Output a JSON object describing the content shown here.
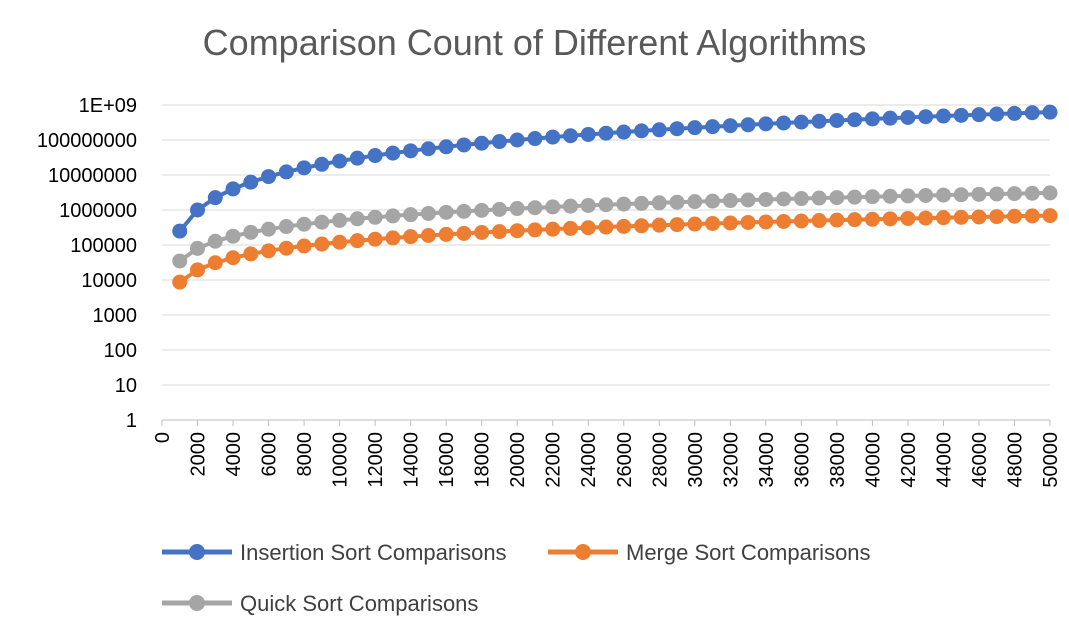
{
  "chart_data": {
    "type": "line",
    "title": "Comparison Count of Different Algorithms",
    "xlabel": "",
    "ylabel": "",
    "yscale": "log10",
    "ylim": [
      1,
      1000000000
    ],
    "y_ticks": [
      "1",
      "10",
      "100",
      "1000",
      "10000",
      "100000",
      "1000000",
      "10000000",
      "100000000",
      "1E+09"
    ],
    "xlim": [
      0,
      50000
    ],
    "x_ticks": [
      "0",
      "2000",
      "4000",
      "6000",
      "8000",
      "10000",
      "12000",
      "14000",
      "16000",
      "18000",
      "20000",
      "22000",
      "24000",
      "26000",
      "28000",
      "30000",
      "32000",
      "34000",
      "36000",
      "38000",
      "40000",
      "42000",
      "44000",
      "46000",
      "48000",
      "50000"
    ],
    "grid": "horizontal",
    "legend": "bottom",
    "x": [
      1000,
      2000,
      3000,
      4000,
      5000,
      6000,
      7000,
      8000,
      9000,
      10000,
      11000,
      12000,
      13000,
      14000,
      15000,
      16000,
      17000,
      18000,
      19000,
      20000,
      21000,
      22000,
      23000,
      24000,
      25000,
      26000,
      27000,
      28000,
      29000,
      30000,
      31000,
      32000,
      33000,
      34000,
      35000,
      36000,
      37000,
      38000,
      39000,
      40000,
      41000,
      42000,
      43000,
      44000,
      45000,
      46000,
      47000,
      48000,
      49000,
      50000
    ],
    "series": [
      {
        "name": "Insertion Sort Comparisons",
        "color": "#4472C4",
        "values": [
          250000,
          1000000,
          2250000,
          4000000,
          6250000,
          9000000,
          12250000,
          16000000,
          20250000,
          25000000,
          30250000,
          36000000,
          42250000,
          49000000,
          56250000,
          64000000,
          72250000,
          81000000,
          90250000,
          100000000,
          110250000,
          121000000,
          132250000,
          144000000,
          156250000,
          169000000,
          182250000,
          196000000,
          210250000,
          225000000,
          240250000,
          256000000,
          272250000,
          289000000,
          306250000,
          324000000,
          342250000,
          361000000,
          380250000,
          400000000,
          420250000,
          441000000,
          462250000,
          484000000,
          506250000,
          529000000,
          552250000,
          576000000,
          600250000,
          625000000
        ]
      },
      {
        "name": "Merge Sort Comparisons",
        "color": "#ED7D31",
        "values": [
          8700,
          19400,
          31100,
          43200,
          55600,
          68200,
          80900,
          93600,
          106700,
          119900,
          133100,
          146400,
          159700,
          173000,
          186800,
          200500,
          214200,
          228000,
          241800,
          255600,
          269600,
          283700,
          297700,
          311900,
          326000,
          340200,
          354400,
          368800,
          383200,
          397600,
          412000,
          426400,
          441000,
          455700,
          470300,
          485000,
          499600,
          514200,
          528900,
          543600,
          558500,
          573400,
          588200,
          603100,
          618000,
          632900,
          647900,
          662900,
          677900,
          692900
        ]
      },
      {
        "name": "Quick Sort Comparisons",
        "color": "#A5A5A5",
        "values": [
          35000,
          80000,
          128000,
          178000,
          230000,
          283000,
          337000,
          392000,
          448000,
          505000,
          562000,
          620000,
          678000,
          737000,
          796000,
          856000,
          916000,
          977000,
          1038000,
          1100000,
          1162000,
          1224000,
          1287000,
          1350000,
          1413000,
          1477000,
          1541000,
          1605000,
          1669000,
          1734000,
          1799000,
          1864000,
          1930000,
          1996000,
          2062000,
          2128000,
          2195000,
          2262000,
          2329000,
          2396000,
          2464000,
          2531000,
          2599000,
          2667000,
          2736000,
          2804000,
          2873000,
          2942000,
          3011000,
          3080000
        ]
      }
    ]
  }
}
